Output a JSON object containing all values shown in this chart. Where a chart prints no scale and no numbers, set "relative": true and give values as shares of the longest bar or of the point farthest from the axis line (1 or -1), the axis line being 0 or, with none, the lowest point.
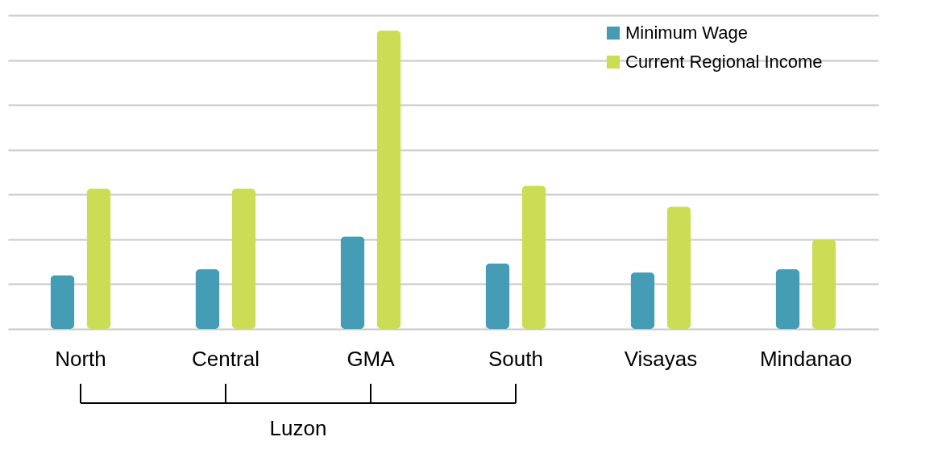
{
  "chart_data": {
    "type": "bar",
    "relative": true,
    "categories": [
      "North",
      "Central",
      "GMA",
      "South",
      "Visayas",
      "Mindanao"
    ],
    "series": [
      {
        "name": "Minimum Wage",
        "color": "#459db5",
        "values": [
          0.18,
          0.2,
          0.31,
          0.22,
          0.19,
          0.2
        ]
      },
      {
        "name": "Current Regional Income",
        "color": "#cadd55",
        "values": [
          0.47,
          0.47,
          1,
          0.48,
          0.41,
          0.3
        ]
      }
    ],
    "grid": true,
    "legend": "top right",
    "annotations": [
      "Luzon"
    ]
  }
}
